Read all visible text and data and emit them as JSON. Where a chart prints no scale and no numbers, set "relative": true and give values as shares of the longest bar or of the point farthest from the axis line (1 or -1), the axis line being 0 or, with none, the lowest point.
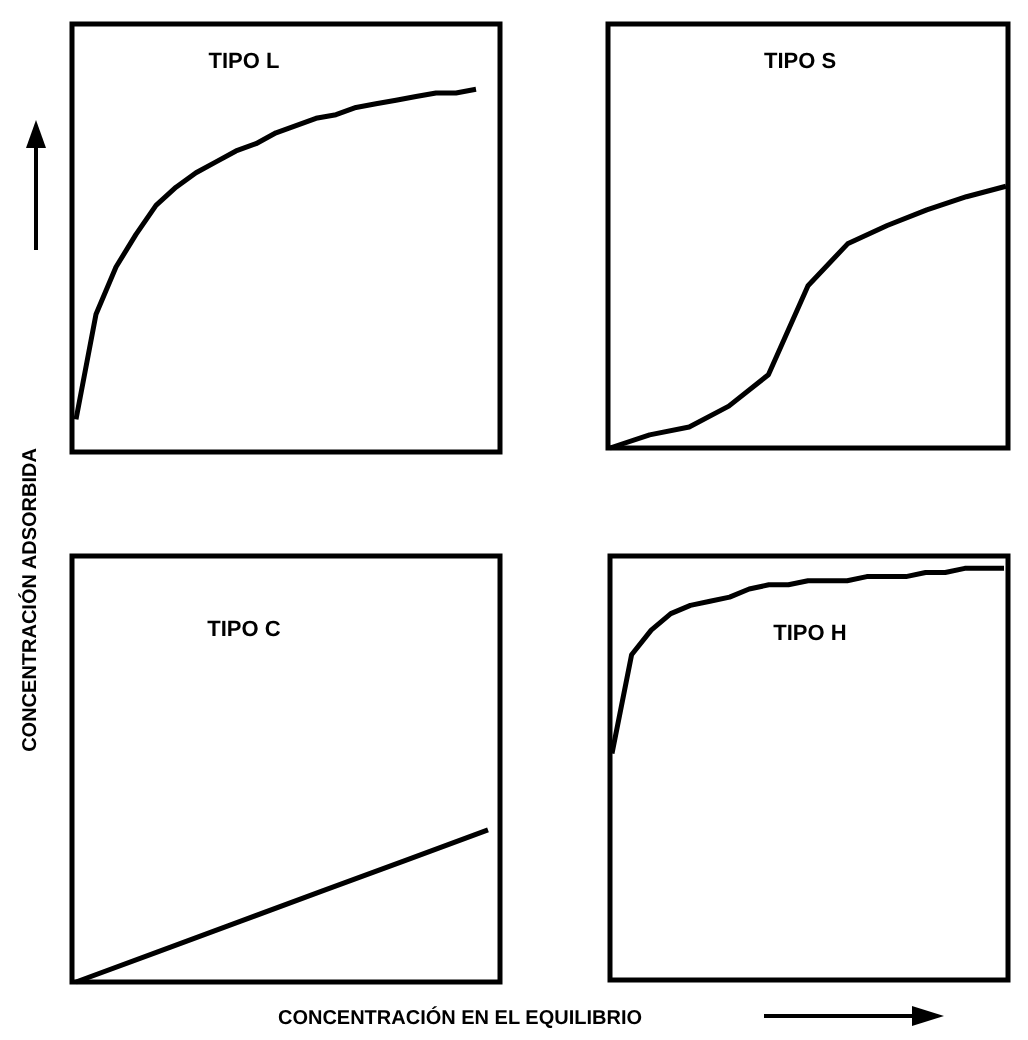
{
  "chart_data": [
    {
      "type": "line",
      "title": "TIPO L",
      "ylabel": "CONCENTRACIÓN ADSORBIDA",
      "relative": true,
      "color": "#000000",
      "categories": [
        null,
        null,
        null,
        null,
        null,
        null,
        null,
        null,
        null,
        null,
        null,
        null,
        null,
        null,
        null,
        null,
        null,
        null,
        null,
        null,
        null
      ],
      "values": [
        0.09,
        0.38,
        0.51,
        0.6,
        0.68,
        0.73,
        0.77,
        0.8,
        0.83,
        0.85,
        0.88,
        0.9,
        0.92,
        0.93,
        0.95,
        0.96,
        0.97,
        0.98,
        0.99,
        0.99,
        1
      ]
    },
    {
      "type": "line",
      "title": "TIPO S",
      "relative": true,
      "color": "#000000",
      "categories": [
        null,
        null,
        null,
        null,
        null,
        null,
        null,
        null,
        null,
        null,
        null
      ],
      "values": [
        0,
        0.05,
        0.08,
        0.16,
        0.28,
        0.62,
        0.78,
        0.85,
        0.91,
        0.96,
        1
      ]
    },
    {
      "type": "line",
      "title": "TIPO C",
      "xlabel": "CONCENTRACIÓN EN EL EQUILIBRIO",
      "relative": true,
      "color": "#000000",
      "categories": [
        null,
        null,
        null,
        null,
        null,
        null
      ],
      "values": [
        0,
        0.2,
        0.4,
        0.6,
        0.8,
        1
      ]
    },
    {
      "type": "line",
      "title": "TIPO H",
      "relative": true,
      "color": "#000000",
      "categories": [
        null,
        null,
        null,
        null,
        null,
        null,
        null,
        null,
        null,
        null,
        null,
        null,
        null,
        null,
        null,
        null,
        null,
        null,
        null,
        null,
        null
      ],
      "values": [
        0.55,
        0.79,
        0.85,
        0.89,
        0.91,
        0.92,
        0.93,
        0.95,
        0.96,
        0.96,
        0.97,
        0.97,
        0.97,
        0.98,
        0.98,
        0.98,
        0.99,
        0.99,
        1,
        1,
        1
      ]
    }
  ]
}
